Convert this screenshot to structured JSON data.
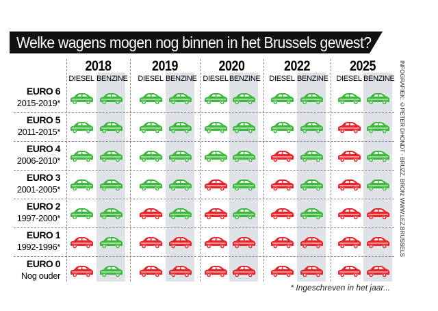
{
  "title": "Welke wagens mogen nog binnen in het Brussels gewest?",
  "fuel_labels": {
    "diesel": "DIESEL",
    "benzine": "BENZINE"
  },
  "years": [
    "2018",
    "2019",
    "2020",
    "2022",
    "2025"
  ],
  "rows": [
    {
      "norm": "EURO 6",
      "period": "2015-2019*",
      "allowed": {
        "2018": [
          "yes",
          "yes"
        ],
        "2019": [
          "yes",
          "yes"
        ],
        "2020": [
          "yes",
          "yes"
        ],
        "2022": [
          "yes",
          "yes"
        ],
        "2025": [
          "yes",
          "yes"
        ]
      }
    },
    {
      "norm": "EURO 5",
      "period": "2011-2015*",
      "allowed": {
        "2018": [
          "yes",
          "yes"
        ],
        "2019": [
          "yes",
          "yes"
        ],
        "2020": [
          "yes",
          "yes"
        ],
        "2022": [
          "yes",
          "yes"
        ],
        "2025": [
          "no",
          "yes"
        ]
      }
    },
    {
      "norm": "EURO 4",
      "period": "2006-2010*",
      "allowed": {
        "2018": [
          "yes",
          "yes"
        ],
        "2019": [
          "yes",
          "yes"
        ],
        "2020": [
          "yes",
          "yes"
        ],
        "2022": [
          "no",
          "yes"
        ],
        "2025": [
          "no",
          "yes"
        ]
      }
    },
    {
      "norm": "EURO 3",
      "period": "2001-2005*",
      "allowed": {
        "2018": [
          "yes",
          "yes"
        ],
        "2019": [
          "yes",
          "yes"
        ],
        "2020": [
          "no",
          "yes"
        ],
        "2022": [
          "no",
          "yes"
        ],
        "2025": [
          "no",
          "yes"
        ]
      }
    },
    {
      "norm": "EURO 2",
      "period": "1997-2000*",
      "allowed": {
        "2018": [
          "yes",
          "yes"
        ],
        "2019": [
          "no",
          "yes"
        ],
        "2020": [
          "no",
          "yes"
        ],
        "2022": [
          "no",
          "yes"
        ],
        "2025": [
          "no",
          "no"
        ]
      }
    },
    {
      "norm": "EURO 1",
      "period": "1992-1996*",
      "allowed": {
        "2018": [
          "no",
          "yes"
        ],
        "2019": [
          "no",
          "no"
        ],
        "2020": [
          "no",
          "no"
        ],
        "2022": [
          "no",
          "no"
        ],
        "2025": [
          "no",
          "no"
        ]
      }
    },
    {
      "norm": "EURO 0",
      "period": "Nog ouder",
      "allowed": {
        "2018": [
          "no",
          "yes"
        ],
        "2019": [
          "no",
          "no"
        ],
        "2020": [
          "no",
          "no"
        ],
        "2022": [
          "no",
          "no"
        ],
        "2025": [
          "no",
          "no"
        ]
      }
    }
  ],
  "colors": {
    "allowed": "#3cb83c",
    "banned": "#e8232a",
    "benzine_column": "#dfe2e7",
    "title_bar": "#111111"
  },
  "icon": "car-icon",
  "footnote": "* Ingeschreven in het jaar...",
  "credit": "INFOGRAFIEK: ©PETER DHONDT - BRUZZ. BRON: WWW.LEZ.BRUSSELS"
}
